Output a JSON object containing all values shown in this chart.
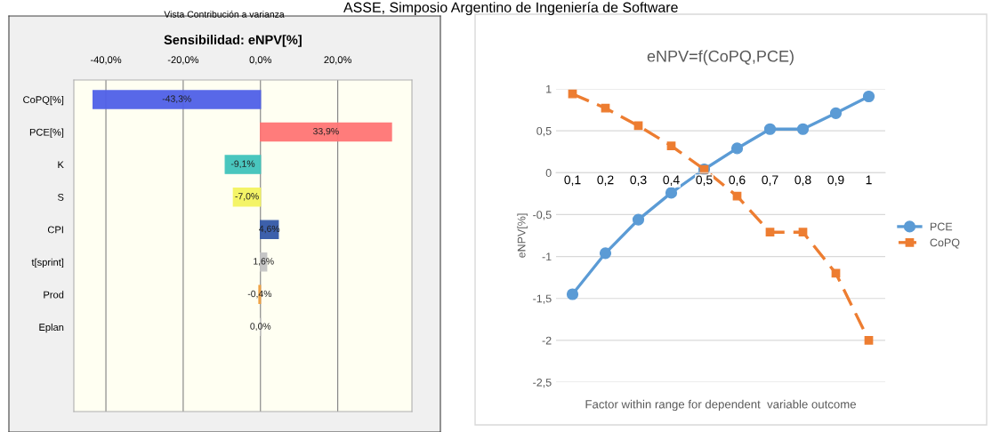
{
  "chart_data": [
    {
      "type": "bar",
      "orientation": "horizontal",
      "title": "Sensibilidad: eNPV[%]",
      "annotations": [
        "ASSE, Simposio Argentino de Ingeniería de Software",
        "Vista Contribución a varianza"
      ],
      "categories": [
        "CoPQ[%]",
        "PCE[%]",
        "K",
        "S",
        "CPI",
        "t[sprint]",
        "Prod",
        "Eplan"
      ],
      "values": [
        -43.3,
        33.9,
        -9.1,
        -7.0,
        4.6,
        1.6,
        -0.4,
        0.0
      ],
      "value_labels": [
        "-43,3%",
        "33,9%",
        "-9,1%",
        "-7,0%",
        "4,6%",
        "1,6%",
        "-0,4%",
        "0,0%"
      ],
      "colors": [
        "#5060e8",
        "#ff7575",
        "#40c4bc",
        "#f4f460",
        "#3358a8",
        "#c4c4c4",
        "#f0a040",
        "#c4c4c4"
      ],
      "xlim": [
        -48.3,
        39.2
      ],
      "xticks": [
        {
          "value": -40,
          "label": "-40,0%"
        },
        {
          "value": -20,
          "label": "-20,0%"
        },
        {
          "value": 0,
          "label": "0,0%"
        },
        {
          "value": 20,
          "label": "20,0%"
        }
      ],
      "grid": "x",
      "legend": false
    },
    {
      "type": "line",
      "title": "eNPV=f(CoPQ,PCE)",
      "xlabel": "Factor within range for dependent  variable outcome",
      "ylabel": "eNPV[%]",
      "categories": [
        "0,1",
        "0,2",
        "0,3",
        "0,4",
        "0,5",
        "0,6",
        "0,7",
        "0,8",
        "0,9",
        "1"
      ],
      "series": [
        {
          "name": "PCE",
          "color": "#5b9bd5",
          "marker": "circle",
          "line_style": "solid",
          "values": [
            -1.45,
            -0.96,
            -0.56,
            -0.24,
            0.04,
            0.29,
            0.52,
            0.52,
            0.71,
            0.91
          ]
        },
        {
          "name": "CoPQ",
          "color": "#ed7d31",
          "marker": "square",
          "line_style": "dashed",
          "values": [
            0.94,
            0.77,
            0.56,
            0.32,
            0.04,
            -0.28,
            -0.71,
            -0.71,
            -1.2,
            -2.0
          ]
        }
      ],
      "ylim": [
        -2.5,
        1
      ],
      "yticks": [
        {
          "value": -2.5,
          "label": "-2,5"
        },
        -2,
        {
          "value": -1.5,
          "label": "-1,5"
        },
        -1,
        {
          "value": -0.5,
          "label": "-0,5"
        },
        0,
        {
          "value": 0.5,
          "label": "0,5"
        },
        1
      ],
      "grid": "y",
      "legend": "right"
    }
  ]
}
